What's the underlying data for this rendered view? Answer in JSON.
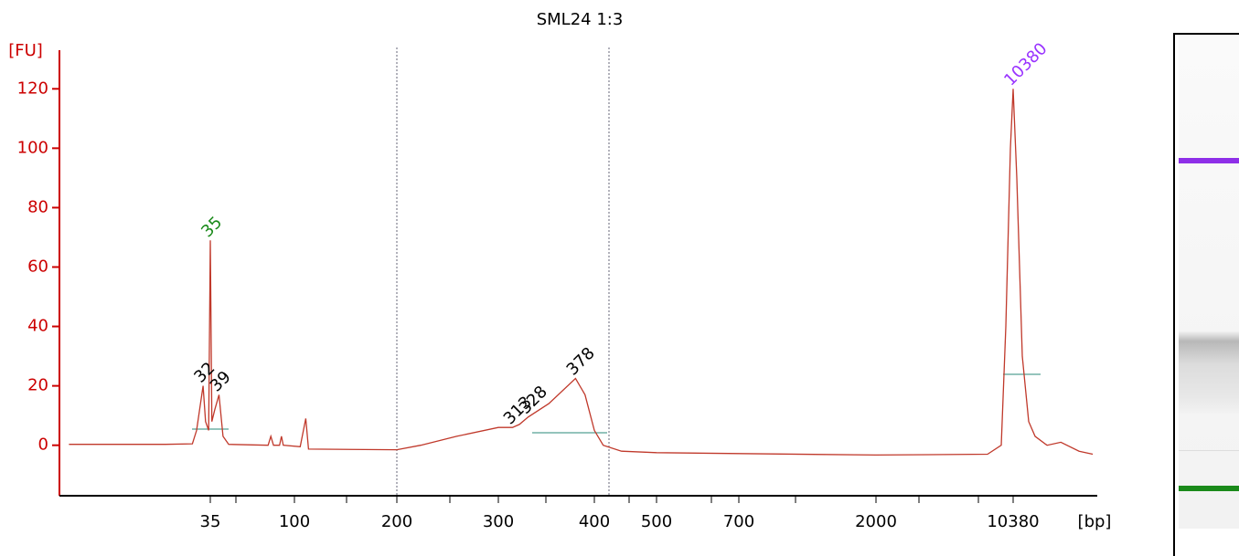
{
  "chart_data": {
    "type": "line",
    "title": "SML24 1:3",
    "xlabel": "[bp]",
    "ylabel": "[FU]",
    "color": "#c0392b",
    "axis_color": "#cc0000",
    "x": [
      6,
      20,
      28,
      29.5,
      32,
      33,
      34.3,
      35,
      35.7,
      37,
      39,
      41,
      44,
      72,
      74.5,
      77,
      83,
      85,
      87,
      104,
      108,
      110,
      200,
      220,
      254,
      300,
      313,
      319.5,
      328,
      349,
      378,
      389,
      400,
      413,
      441,
      500,
      700,
      2000,
      7630,
      9000,
      9510,
      10040,
      10380,
      10846,
      11590,
      12510,
      13510,
      15590,
      18420,
      22900,
      27000
    ],
    "values": [
      0.3,
      0.3,
      0.5,
      5,
      20,
      8,
      5,
      69,
      8,
      12,
      17,
      3,
      0.3,
      0,
      3,
      0,
      0,
      3,
      0,
      -0.5,
      9,
      -1.3,
      -1.5,
      0,
      3,
      6,
      6,
      7,
      9.5,
      14,
      22.5,
      17,
      5,
      0,
      -2,
      -2.5,
      -2.8,
      -3.3,
      -3,
      0,
      40,
      100,
      120,
      90,
      30,
      8,
      3,
      0,
      1,
      -2,
      -3
    ],
    "xticks": [
      35,
      100,
      200,
      300,
      400,
      500,
      700,
      2000,
      10380
    ],
    "ylim": [
      -17,
      133
    ],
    "yticks": [
      0,
      20,
      40,
      60,
      80,
      100,
      120
    ],
    "peaks": [
      {
        "x": 35,
        "y": 69,
        "color": "#1a8a1a"
      },
      {
        "x": 32,
        "y": 20,
        "color": "#000000"
      },
      {
        "x": 39,
        "y": 17,
        "color": "#000000"
      },
      {
        "x": 313,
        "y": 6,
        "color": "#000000"
      },
      {
        "x": 328,
        "y": 9.5,
        "color": "#000000"
      },
      {
        "x": 378,
        "y": 22.5,
        "color": "#000000"
      },
      {
        "x": 10380,
        "y": 120,
        "color": "#9933ff"
      }
    ]
  }
}
